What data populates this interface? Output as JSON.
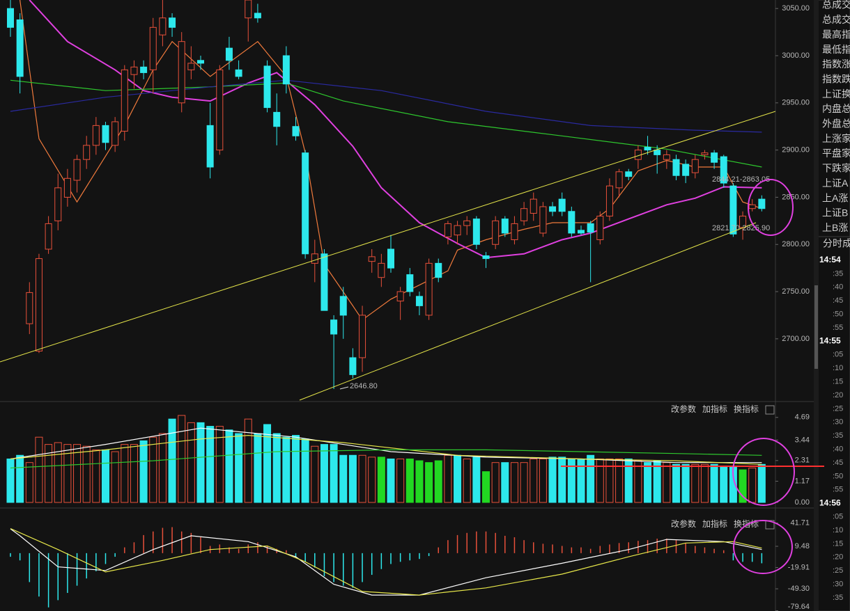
{
  "chart_data": [
    {
      "type": "candlestick",
      "up_color": "#e8503a",
      "down_color": "#2de8ec",
      "open": [
        3050,
        3038,
        2716,
        2687,
        2795,
        2825,
        2850,
        2868,
        2890,
        2905,
        2926,
        2905,
        2920,
        2980,
        2988,
        2985,
        3022,
        3040,
        2950,
        2985,
        2995,
        2926,
        2900,
        3008,
        2985,
        3040,
        3045,
        2989,
        2940,
        3000,
        2925,
        2897,
        2780,
        2790,
        2720,
        2745,
        2680,
        2680,
        2782,
        2765,
        2795,
        2740,
        2768,
        2745,
        2725,
        2780,
        2808,
        2810,
        2820,
        2827,
        2788,
        2800,
        2827,
        2805,
        2825,
        2833,
        2812,
        2840,
        2848,
        2835,
        2815,
        2822,
        2805,
        2830,
        2860,
        2877,
        2890,
        2903,
        2900,
        2890,
        2890,
        2885,
        2876,
        2895,
        2897,
        2893,
        2862,
        2818,
        2838,
        2848
      ],
      "high": [
        3059,
        3045,
        2760,
        2790,
        2830,
        2875,
        2880,
        2895,
        2915,
        2935,
        2930,
        2935,
        2990,
        2995,
        2995,
        3040,
        3059,
        3045,
        3025,
        3010,
        3000,
        2950,
        2990,
        3020,
        2995,
        3059,
        3055,
        2995,
        2960,
        3010,
        2935,
        2900,
        2805,
        2795,
        2725,
        2755,
        2690,
        2735,
        2795,
        2790,
        2810,
        2755,
        2775,
        2750,
        2785,
        2785,
        2825,
        2825,
        2830,
        2830,
        2792,
        2830,
        2830,
        2830,
        2845,
        2855,
        2845,
        2845,
        2855,
        2840,
        2820,
        2825,
        2835,
        2870,
        2880,
        2880,
        2905,
        2915,
        2905,
        2900,
        2895,
        2890,
        2895,
        2900,
        2900,
        2895,
        2865,
        2835,
        2848,
        2852
      ],
      "low": [
        3020,
        2960,
        2705,
        2685,
        2790,
        2815,
        2840,
        2855,
        2880,
        2895,
        2900,
        2898,
        2910,
        2965,
        2975,
        2960,
        3010,
        3020,
        2940,
        2975,
        2985,
        2870,
        2895,
        2985,
        2975,
        3015,
        3035,
        2940,
        2905,
        2960,
        2910,
        2785,
        2760,
        2730,
        2646.8,
        2700,
        2658,
        2665,
        2770,
        2755,
        2770,
        2720,
        2745,
        2725,
        2720,
        2760,
        2800,
        2800,
        2810,
        2795,
        2775,
        2795,
        2808,
        2800,
        2820,
        2825,
        2808,
        2830,
        2830,
        2808,
        2810,
        2760,
        2800,
        2825,
        2850,
        2868,
        2880,
        2895,
        2875,
        2880,
        2868,
        2865,
        2870,
        2890,
        2880,
        2860,
        2808,
        2805,
        2835,
        2835
      ],
      "close": [
        3030,
        2978,
        2749,
        2785,
        2822,
        2860,
        2870,
        2890,
        2905,
        2926,
        2908,
        2930,
        2985,
        2988,
        2982,
        3030,
        3040,
        3030,
        3015,
        2992,
        2992,
        2882,
        2985,
        2995,
        2978,
        3059,
        3040,
        2945,
        2925,
        2970,
        2915,
        2790,
        2790,
        2730,
        2705,
        2725,
        2662,
        2725,
        2787,
        2780,
        2775,
        2750,
        2750,
        2735,
        2780,
        2765,
        2822,
        2820,
        2825,
        2800,
        2785,
        2825,
        2812,
        2822,
        2838,
        2848,
        2840,
        2835,
        2835,
        2812,
        2812,
        2813,
        2830,
        2862,
        2877,
        2872,
        2900,
        2900,
        2895,
        2895,
        2873,
        2873,
        2890,
        2897,
        2887,
        2865,
        2811,
        2830,
        2842,
        2838
      ],
      "series": [
        {
          "color": "#f07a3c",
          "x": [
            1,
            3,
            7,
            12,
            15,
            17,
            21,
            26,
            29,
            31,
            33,
            36,
            37,
            40,
            43,
            46,
            47,
            50,
            54,
            57,
            61,
            63,
            66,
            69,
            72,
            75,
            77,
            79
          ],
          "values": [
            3059,
            2912,
            2845,
            2926,
            2985,
            3015,
            2978,
            3015,
            2978,
            2897,
            2779,
            2735,
            2720,
            2742,
            2757,
            2772,
            2794,
            2805,
            2816,
            2823,
            2823,
            2838,
            2878,
            2889,
            2882,
            2882,
            2845,
            2838
          ]
        },
        {
          "color": "#e040e0",
          "x": [
            2,
            6,
            11,
            14,
            17,
            21,
            25,
            28,
            32,
            36,
            39,
            43,
            47,
            50,
            54,
            58,
            61,
            65,
            69,
            72,
            75,
            79
          ],
          "values": [
            3059,
            3015,
            2985,
            2963,
            2956,
            2952,
            2971,
            2982,
            2948,
            2904,
            2860,
            2823,
            2801,
            2786,
            2790,
            2805,
            2812,
            2827,
            2842,
            2849,
            2861,
            2860
          ]
        },
        {
          "color": "#2ec82e",
          "x": [
            0,
            10,
            21,
            29,
            35,
            46,
            58,
            69,
            79
          ],
          "values": [
            2974,
            2963,
            2967,
            2971,
            2952,
            2930,
            2915,
            2901,
            2882
          ]
        },
        {
          "color": "#2a2aa0",
          "x": [
            0,
            10,
            21,
            29,
            39,
            50,
            61,
            72,
            79
          ],
          "values": [
            2941,
            2956,
            2967,
            2974,
            2963,
            2941,
            2926,
            2921,
            2919
          ]
        }
      ],
      "ylim": [
        2635,
        3059
      ],
      "yticks": [
        {
          "value": 3050,
          "label": "3050.00"
        },
        {
          "value": 3000,
          "label": "3000.00"
        },
        {
          "value": 2950,
          "label": "2950.00"
        },
        {
          "value": 2900,
          "label": "2900.00"
        },
        {
          "value": 2850,
          "label": "2850.00"
        },
        {
          "value": 2800,
          "label": "2800.00"
        },
        {
          "value": 2750,
          "label": "2750.00"
        },
        {
          "value": 2700,
          "label": "2700.00"
        }
      ],
      "annotations": [
        "2646.80",
        "2844.21-2863.05",
        "2821.70-2825.90"
      ]
    },
    {
      "type": "volume",
      "hollow_color": "#e8503a",
      "values": [
        2.4,
        2.6,
        2.2,
        3.6,
        3.2,
        3.3,
        3.2,
        3.2,
        3.1,
        2.9,
        2.9,
        2.8,
        3.2,
        3.2,
        3.4,
        3.6,
        3.8,
        4.6,
        4.8,
        4.4,
        4.4,
        4.2,
        4.2,
        4.0,
        3.8,
        4.6,
        3.8,
        4.3,
        3.8,
        3.6,
        3.7,
        3.5,
        3.1,
        3.2,
        3.2,
        2.6,
        2.6,
        2.6,
        2.5,
        2.5,
        2.4,
        2.4,
        2.4,
        2.3,
        2.2,
        2.3,
        2.6,
        2.6,
        2.4,
        2.5,
        1.7,
        2.2,
        2.2,
        2.2,
        2.2,
        2.4,
        2.4,
        2.5,
        2.5,
        2.4,
        2.4,
        2.6,
        2.4,
        2.4,
        2.4,
        2.4,
        2.3,
        2.2,
        2.3,
        2.2,
        2.1,
        2.1,
        2.1,
        2.1,
        2.1,
        2.0,
        2.0,
        1.8,
        1.9,
        2.1
      ],
      "colors": [
        "#2de8ec",
        "#2de8ec",
        "#e8503a",
        "#e8503a",
        "#e8503a",
        "#e8503a",
        "#e8503a",
        "#e8503a",
        "#e8503a",
        "#e8503a",
        "#2de8ec",
        "#e8503a",
        "#e8503a",
        "#e8503a",
        "#2de8ec",
        "#e8503a",
        "#e8503a",
        "#2de8ec",
        "#e8503a",
        "#e8503a",
        "#2de8ec",
        "#2de8ec",
        "#e8503a",
        "#2de8ec",
        "#2de8ec",
        "#e8503a",
        "#2de8ec",
        "#2de8ec",
        "#2de8ec",
        "#2de8ec",
        "#2de8ec",
        "#2de8ec",
        "#e8503a",
        "#2de8ec",
        "#2de8ec",
        "#2de8ec",
        "#2de8ec",
        "#e8503a",
        "#e8503a",
        "#22d822",
        "#2de8ec",
        "#e8503a",
        "#22d822",
        "#22d822",
        "#22d822",
        "#22d822",
        "#e8503a",
        "#2de8ec",
        "#e8503a",
        "#2de8ec",
        "#22d822",
        "#e8503a",
        "#2de8ec",
        "#e8503a",
        "#e8503a",
        "#e8503a",
        "#e8503a",
        "#2de8ec",
        "#2de8ec",
        "#2de8ec",
        "#2de8ec",
        "#2de8ec",
        "#e8503a",
        "#e8503a",
        "#e8503a",
        "#2de8ec",
        "#e8503a",
        "#2de8ec",
        "#2de8ec",
        "#e8503a",
        "#2de8ec",
        "#2de8ec",
        "#e8503a",
        "#e8503a",
        "#2de8ec",
        "#2de8ec",
        "#2de8ec",
        "#22d822",
        "#e8503a",
        "#2de8ec"
      ],
      "series": [
        {
          "color": "#ffffff",
          "x": [
            0,
            10,
            20,
            30,
            40,
            50,
            60,
            70,
            79
          ],
          "values": [
            2.4,
            3.2,
            4.1,
            3.6,
            2.8,
            2.5,
            2.4,
            2.2,
            2.2
          ]
        },
        {
          "color": "#e8e84a",
          "x": [
            0,
            10,
            20,
            25,
            35,
            47,
            60,
            70,
            79
          ],
          "values": [
            2.4,
            2.9,
            3.5,
            3.7,
            3.3,
            2.6,
            2.4,
            2.3,
            2.1
          ]
        },
        {
          "color": "#2ec82e",
          "x": [
            0,
            15,
            28,
            40,
            50,
            60,
            70,
            79
          ],
          "values": [
            1.9,
            2.3,
            2.8,
            2.9,
            2.9,
            2.8,
            2.7,
            2.6
          ]
        }
      ],
      "ylim": [
        0,
        5.45
      ],
      "yticks": [
        4.69,
        3.44,
        2.31,
        1.17,
        {
          "value": 0,
          "label": "0.00"
        }
      ],
      "toolbar": [
        "改参数",
        "加指标",
        "换指标"
      ]
    },
    {
      "type": "macd",
      "up_color": "#e8503a",
      "down_color": "#2de8ec",
      "values": [
        -5,
        -10,
        -40,
        -60,
        -75,
        -65,
        -55,
        -45,
        -35,
        -25,
        -15,
        -5,
        8,
        15,
        25,
        30,
        35,
        36,
        30,
        28,
        22,
        10,
        12,
        8,
        6,
        12,
        15,
        10,
        6,
        4,
        -5,
        -12,
        -20,
        -32,
        -40,
        -45,
        -48,
        -40,
        -30,
        -22,
        -15,
        -12,
        -10,
        -8,
        -4,
        8,
        18,
        25,
        28,
        30,
        30,
        28,
        24,
        22,
        18,
        15,
        13,
        12,
        10,
        8,
        8,
        6,
        10,
        12,
        14,
        15,
        17,
        18,
        20,
        20,
        18,
        14,
        10,
        8,
        6,
        4,
        -10,
        -12,
        -12,
        -14
      ],
      "series": [
        {
          "color": "#ffffff",
          "x": [
            0,
            1,
            5,
            10,
            15,
            19,
            25,
            30,
            34,
            38,
            43,
            50,
            58,
            65,
            69,
            75,
            79
          ],
          "values": [
            33.7,
            24,
            -19,
            -24,
            5,
            24,
            16,
            -5,
            -43,
            -58,
            -58,
            -34,
            -14,
            5,
            19,
            16,
            5
          ]
        },
        {
          "color": "#e8e84a",
          "x": [
            0,
            5,
            10,
            16,
            21,
            27,
            31,
            37,
            43,
            50,
            58,
            65,
            71,
            76,
            79
          ],
          "values": [
            34,
            5,
            -26,
            -10,
            5,
            10,
            -12,
            -53,
            -58,
            -48,
            -29,
            -5,
            14,
            16,
            7
          ]
        }
      ],
      "ylim": [
        -80,
        48
      ],
      "yticks": [
        41.71,
        9.48,
        -19.91,
        {
          "value": -49.3,
          "label": "-49.30"
        },
        -79.64
      ],
      "toolbar": [
        "改参数",
        "加指标",
        "换指标"
      ]
    }
  ],
  "side_panel": {
    "labels": [
      "总成交",
      "总成交",
      "最高指",
      "最低指",
      "指数涨",
      "指数跌",
      "上证换",
      "内盘总",
      "外盘总",
      "上涨家",
      "平盘家",
      "下跌家",
      "上证A",
      "上A涨",
      "上证B",
      "上B涨"
    ],
    "header": "分时成",
    "times": [
      "14:54",
      ":35",
      ":40",
      ":45",
      ":50",
      ":55",
      "14:55",
      ":05",
      ":10",
      ":15",
      ":20",
      ":25",
      ":30",
      ":35",
      ":40",
      ":45",
      ":50",
      ":55",
      "14:56",
      ":05",
      ":10",
      ":15",
      ":20",
      ":25",
      ":30",
      ":35"
    ]
  }
}
